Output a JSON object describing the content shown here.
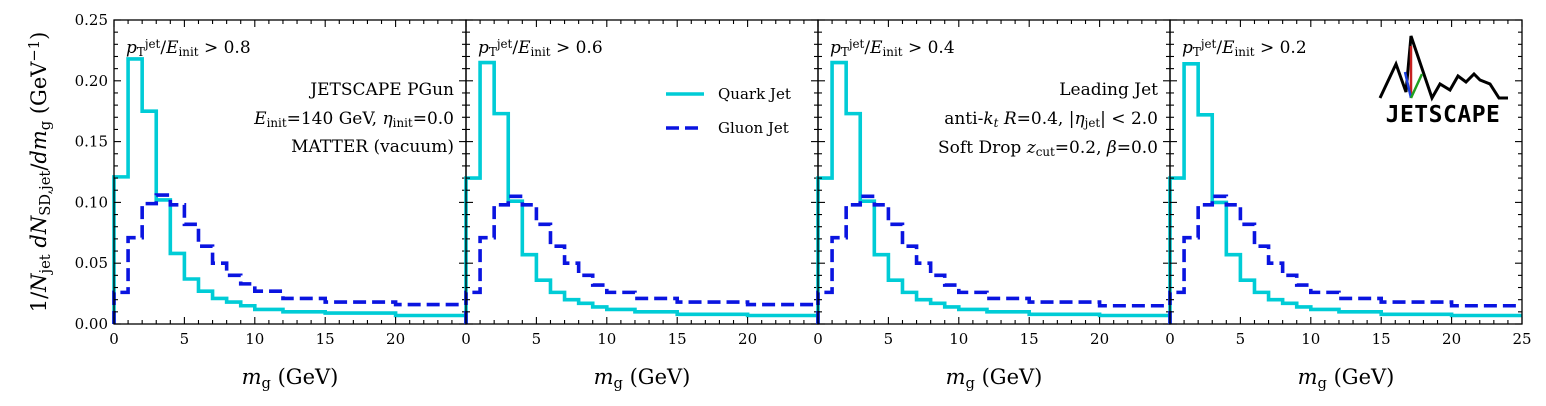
{
  "chart_data": [
    {
      "type": "line",
      "panel_label": "p_T^jet/E_init > 0.8",
      "x_edges": [
        0,
        1,
        2,
        3,
        4,
        5,
        6,
        7,
        8,
        9,
        10,
        12,
        15,
        20,
        25
      ],
      "xlim": [
        0,
        25
      ],
      "ylim": [
        0,
        0.25
      ],
      "xlabel": "m_g (GeV)",
      "ylabel": "1/N_jet dN_SD,jet/dm_g (GeV^-1)",
      "xticks": [
        "0",
        "5",
        "10",
        "15",
        "20"
      ],
      "yticks": [
        "0.00",
        "0.05",
        "0.10",
        "0.15",
        "0.20",
        "0.25"
      ],
      "series": [
        {
          "name": "Quark Jet",
          "style": "solid",
          "color": "#00ccd6",
          "values": [
            0.121,
            0.218,
            0.175,
            0.102,
            0.058,
            0.037,
            0.027,
            0.021,
            0.018,
            0.015,
            0.012,
            0.01,
            0.009,
            0.007
          ]
        },
        {
          "name": "Gluon Jet",
          "style": "dashed",
          "color": "#0a14e0",
          "values": [
            0.026,
            0.071,
            0.099,
            0.106,
            0.098,
            0.082,
            0.064,
            0.05,
            0.04,
            0.033,
            0.027,
            0.021,
            0.018,
            0.016
          ]
        }
      ],
      "annotations": [
        "JETSCAPE PGun",
        "E_init=140 GeV, η_init=0.0",
        "MATTER (vacuum)"
      ]
    },
    {
      "type": "line",
      "panel_label": "p_T^jet/E_init > 0.6",
      "x_edges": [
        0,
        1,
        2,
        3,
        4,
        5,
        6,
        7,
        8,
        9,
        10,
        12,
        15,
        20,
        25
      ],
      "xlim": [
        0,
        25
      ],
      "ylim": [
        0,
        0.25
      ],
      "xticks": [
        "0",
        "5",
        "10",
        "15",
        "20"
      ],
      "series": [
        {
          "name": "Quark Jet",
          "style": "solid",
          "color": "#00ccd6",
          "values": [
            0.12,
            0.215,
            0.173,
            0.101,
            0.057,
            0.036,
            0.026,
            0.02,
            0.017,
            0.014,
            0.012,
            0.01,
            0.008,
            0.007
          ]
        },
        {
          "name": "Gluon Jet",
          "style": "dashed",
          "color": "#0a14e0",
          "values": [
            0.026,
            0.071,
            0.098,
            0.105,
            0.098,
            0.082,
            0.064,
            0.05,
            0.04,
            0.032,
            0.026,
            0.021,
            0.018,
            0.016
          ]
        }
      ],
      "legend": [
        "Quark Jet",
        "Gluon Jet"
      ]
    },
    {
      "type": "line",
      "panel_label": "p_T^jet/E_init > 0.4",
      "x_edges": [
        0,
        1,
        2,
        3,
        4,
        5,
        6,
        7,
        8,
        9,
        10,
        12,
        15,
        20,
        25
      ],
      "xlim": [
        0,
        25
      ],
      "ylim": [
        0,
        0.25
      ],
      "xticks": [
        "0",
        "5",
        "10",
        "15",
        "20"
      ],
      "series": [
        {
          "name": "Quark Jet",
          "style": "solid",
          "color": "#00ccd6",
          "values": [
            0.12,
            0.215,
            0.173,
            0.101,
            0.057,
            0.036,
            0.026,
            0.02,
            0.017,
            0.014,
            0.012,
            0.01,
            0.008,
            0.007
          ]
        },
        {
          "name": "Gluon Jet",
          "style": "dashed",
          "color": "#0a14e0",
          "values": [
            0.026,
            0.071,
            0.098,
            0.105,
            0.098,
            0.082,
            0.064,
            0.05,
            0.04,
            0.032,
            0.026,
            0.021,
            0.018,
            0.015
          ]
        }
      ],
      "annotations": [
        "Leading Jet",
        "anti-k_t R=0.4, |η_jet| < 2.0",
        "Soft Drop z_cut=0.2, β=0.0"
      ]
    },
    {
      "type": "line",
      "panel_label": "p_T^jet/E_init > 0.2",
      "x_edges": [
        0,
        1,
        2,
        3,
        4,
        5,
        6,
        7,
        8,
        9,
        10,
        12,
        15,
        20,
        25
      ],
      "xlim": [
        0,
        25
      ],
      "ylim": [
        0,
        0.25
      ],
      "xticks": [
        "0",
        "5",
        "10",
        "15",
        "20",
        "25"
      ],
      "series": [
        {
          "name": "Quark Jet",
          "style": "solid",
          "color": "#00ccd6",
          "values": [
            0.12,
            0.214,
            0.172,
            0.1,
            0.057,
            0.036,
            0.026,
            0.02,
            0.017,
            0.014,
            0.012,
            0.01,
            0.008,
            0.007
          ]
        },
        {
          "name": "Gluon Jet",
          "style": "dashed",
          "color": "#0a14e0",
          "values": [
            0.026,
            0.071,
            0.098,
            0.105,
            0.098,
            0.082,
            0.064,
            0.05,
            0.04,
            0.032,
            0.026,
            0.021,
            0.018,
            0.015
          ]
        }
      ],
      "logo_text": "JETSCAPE"
    }
  ]
}
